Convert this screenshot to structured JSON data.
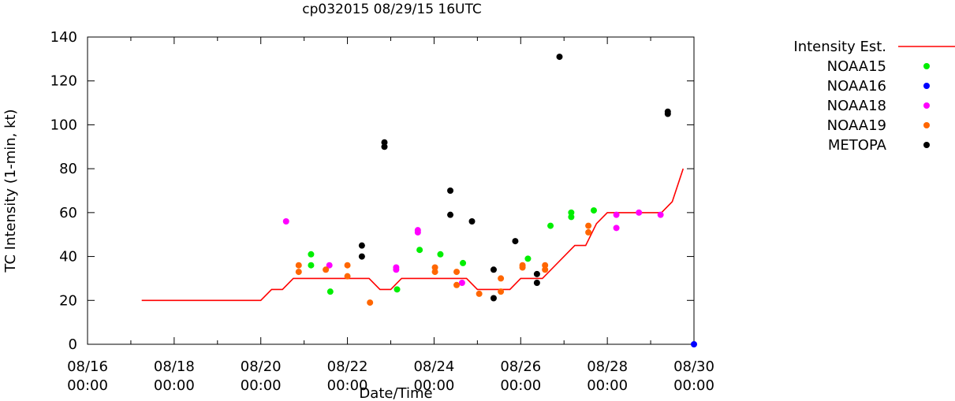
{
  "chart_data": {
    "type": "scatter",
    "title": "cp032015 08/29/15 16UTC",
    "xlabel": "Date/Time",
    "ylabel": "TC Intensity (1-min, kt)",
    "xlim": [
      "2015-08-16 00:00",
      "2015-08-30 00:00"
    ],
    "ylim": [
      0,
      140
    ],
    "x_ticks": [
      {
        "date": "2015-08-16 00:00",
        "line1": "08/16",
        "line2": "00:00"
      },
      {
        "date": "2015-08-18 00:00",
        "line1": "08/18",
        "line2": "00:00"
      },
      {
        "date": "2015-08-20 00:00",
        "line1": "08/20",
        "line2": "00:00"
      },
      {
        "date": "2015-08-22 00:00",
        "line1": "08/22",
        "line2": "00:00"
      },
      {
        "date": "2015-08-24 00:00",
        "line1": "08/24",
        "line2": "00:00"
      },
      {
        "date": "2015-08-26 00:00",
        "line1": "08/26",
        "line2": "00:00"
      },
      {
        "date": "2015-08-28 00:00",
        "line1": "08/28",
        "line2": "00:00"
      },
      {
        "date": "2015-08-30 00:00",
        "line1": "08/30",
        "line2": "00:00"
      }
    ],
    "y_ticks": [
      0,
      20,
      40,
      60,
      80,
      100,
      120,
      140
    ],
    "grid": false,
    "legend_position": "right",
    "series": [
      {
        "name": "Intensity Est.",
        "kind": "line",
        "color": "#ff0000",
        "points": [
          [
            "2015-08-17 06:00",
            20
          ],
          [
            "2015-08-20 00:00",
            20
          ],
          [
            "2015-08-20 06:00",
            25
          ],
          [
            "2015-08-20 12:00",
            25
          ],
          [
            "2015-08-20 18:00",
            30
          ],
          [
            "2015-08-21 12:00",
            30
          ],
          [
            "2015-08-22 00:00",
            30
          ],
          [
            "2015-08-22 12:00",
            30
          ],
          [
            "2015-08-22 18:00",
            25
          ],
          [
            "2015-08-23 00:00",
            25
          ],
          [
            "2015-08-23 06:00",
            30
          ],
          [
            "2015-08-24 00:00",
            30
          ],
          [
            "2015-08-24 18:00",
            30
          ],
          [
            "2015-08-25 00:00",
            25
          ],
          [
            "2015-08-25 18:00",
            25
          ],
          [
            "2015-08-26 00:00",
            30
          ],
          [
            "2015-08-26 12:00",
            30
          ],
          [
            "2015-08-26 18:00",
            35
          ],
          [
            "2015-08-27 06:00",
            45
          ],
          [
            "2015-08-27 12:00",
            45
          ],
          [
            "2015-08-27 18:00",
            55
          ],
          [
            "2015-08-28 00:00",
            60
          ],
          [
            "2015-08-29 06:00",
            60
          ],
          [
            "2015-08-29 12:00",
            65
          ],
          [
            "2015-08-29 18:00",
            80
          ]
        ]
      },
      {
        "name": "NOAA15",
        "kind": "points",
        "color": "#00ee00",
        "points": [
          [
            "2015-08-21 03:50",
            41
          ],
          [
            "2015-08-21 03:50",
            36
          ],
          [
            "2015-08-21 14:30",
            24
          ],
          [
            "2015-08-23 03:30",
            25
          ],
          [
            "2015-08-23 16:00",
            43
          ],
          [
            "2015-08-24 03:30",
            41
          ],
          [
            "2015-08-24 16:00",
            37
          ],
          [
            "2015-08-26 04:00",
            39
          ],
          [
            "2015-08-26 16:30",
            54
          ],
          [
            "2015-08-27 04:00",
            60
          ],
          [
            "2015-08-27 04:00",
            58
          ],
          [
            "2015-08-27 16:30",
            61
          ]
        ]
      },
      {
        "name": "NOAA16",
        "kind": "points",
        "color": "#0000ff",
        "points": [
          [
            "2015-08-30 00:00",
            0
          ]
        ]
      },
      {
        "name": "NOAA18",
        "kind": "points",
        "color": "#ff00ff",
        "points": [
          [
            "2015-08-20 14:00",
            56
          ],
          [
            "2015-08-21 14:00",
            36
          ],
          [
            "2015-08-23 03:00",
            35
          ],
          [
            "2015-08-23 03:00",
            34
          ],
          [
            "2015-08-23 15:00",
            52
          ],
          [
            "2015-08-23 15:00",
            51
          ],
          [
            "2015-08-24 15:30",
            28
          ],
          [
            "2015-08-28 05:00",
            59
          ],
          [
            "2015-08-28 05:00",
            53
          ],
          [
            "2015-08-28 17:30",
            60
          ],
          [
            "2015-08-29 05:30",
            59
          ]
        ]
      },
      {
        "name": "NOAA19",
        "kind": "points",
        "color": "#ff6600",
        "points": [
          [
            "2015-08-20 21:00",
            36
          ],
          [
            "2015-08-20 21:00",
            33
          ],
          [
            "2015-08-21 12:00",
            34
          ],
          [
            "2015-08-22 00:00",
            36
          ],
          [
            "2015-08-22 00:00",
            31
          ],
          [
            "2015-08-22 12:30",
            19
          ],
          [
            "2015-08-24 00:30",
            35
          ],
          [
            "2015-08-24 00:30",
            33
          ],
          [
            "2015-08-24 12:30",
            33
          ],
          [
            "2015-08-24 12:30",
            27
          ],
          [
            "2015-08-25 01:00",
            23
          ],
          [
            "2015-08-25 13:00",
            30
          ],
          [
            "2015-08-25 13:00",
            24
          ],
          [
            "2015-08-26 01:00",
            36
          ],
          [
            "2015-08-26 01:00",
            35
          ],
          [
            "2015-08-26 13:30",
            36
          ],
          [
            "2015-08-26 13:30",
            34
          ],
          [
            "2015-08-27 13:30",
            54
          ],
          [
            "2015-08-27 13:30",
            51
          ]
        ]
      },
      {
        "name": "METOPA",
        "kind": "points",
        "color": "#000000",
        "points": [
          [
            "2015-08-22 08:00",
            45
          ],
          [
            "2015-08-22 08:00",
            40
          ],
          [
            "2015-08-22 20:30",
            92
          ],
          [
            "2015-08-22 20:30",
            90
          ],
          [
            "2015-08-24 09:00",
            70
          ],
          [
            "2015-08-24 09:00",
            59
          ],
          [
            "2015-08-24 21:00",
            56
          ],
          [
            "2015-08-25 09:00",
            34
          ],
          [
            "2015-08-25 09:00",
            21
          ],
          [
            "2015-08-25 21:00",
            47
          ],
          [
            "2015-08-26 09:00",
            32
          ],
          [
            "2015-08-26 09:00",
            28
          ],
          [
            "2015-08-26 21:30",
            131
          ],
          [
            "2015-08-29 09:30",
            106
          ],
          [
            "2015-08-29 09:30",
            105
          ]
        ]
      }
    ]
  }
}
